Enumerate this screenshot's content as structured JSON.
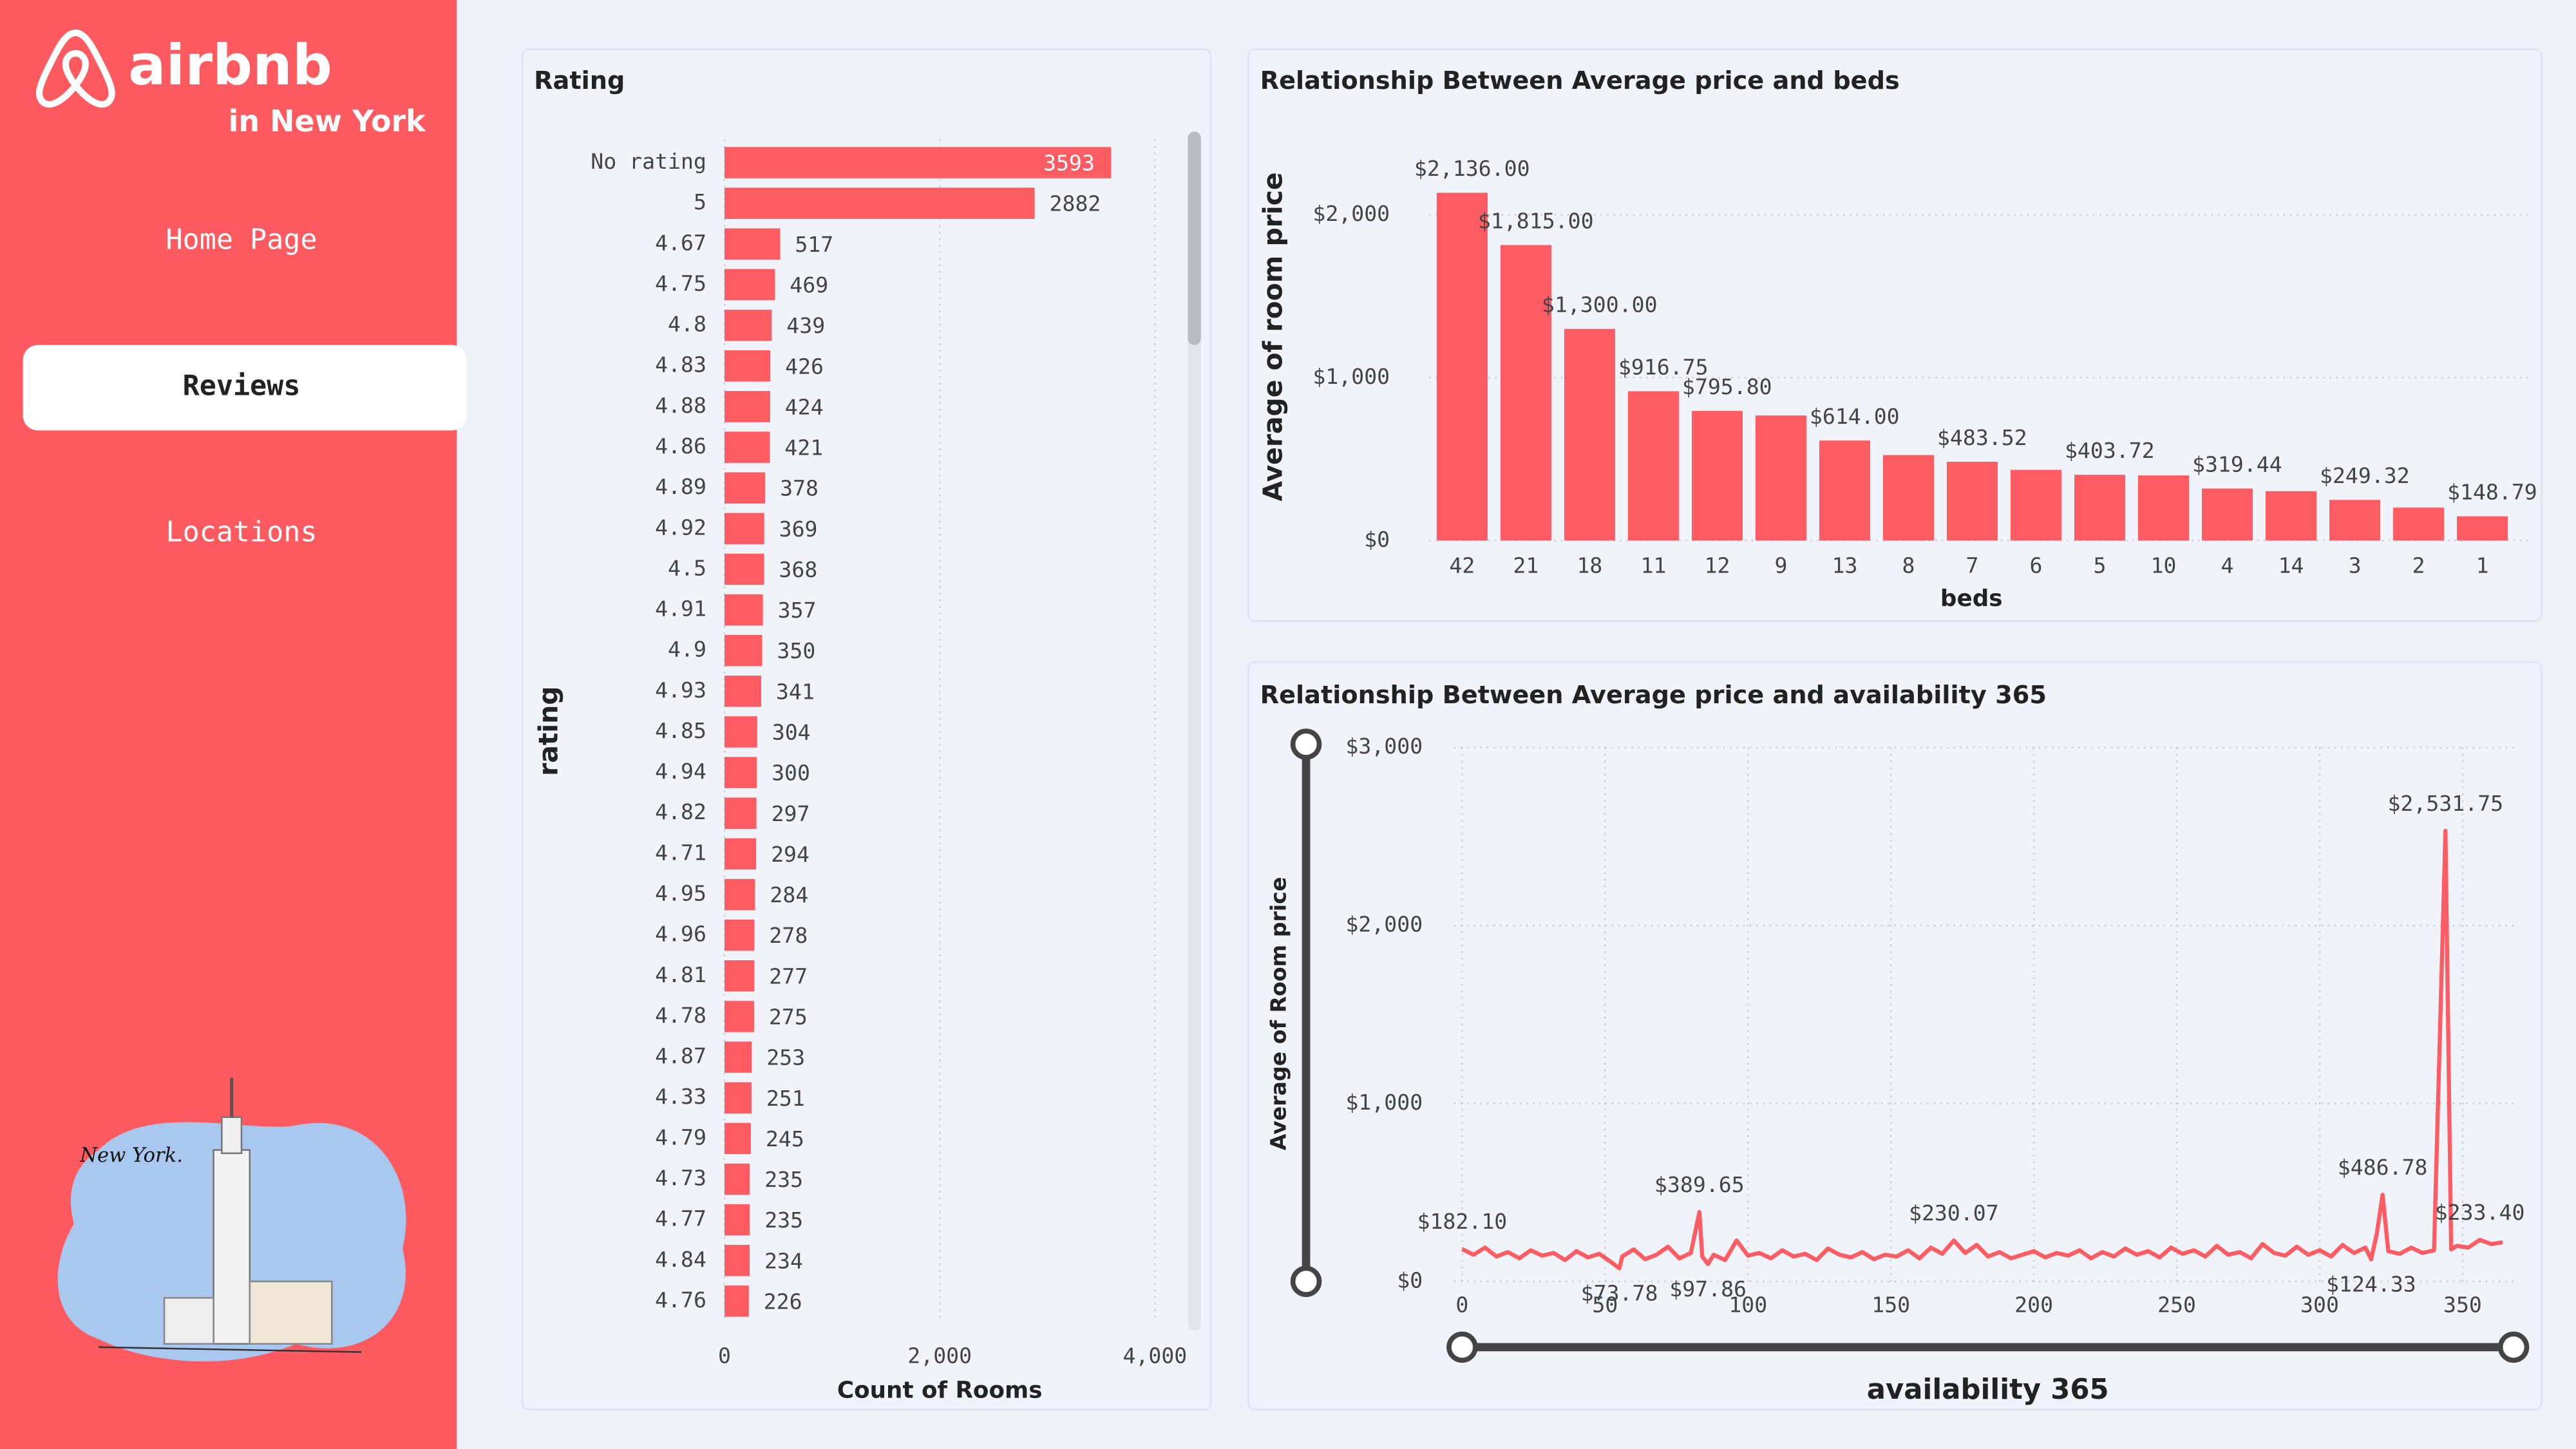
{
  "sidebar": {
    "brand": "airbnb",
    "subtitle": "in New York",
    "nav": [
      "Home Page",
      "Reviews",
      "Locations"
    ],
    "illustration_caption": "New York."
  },
  "chart_data": [
    {
      "type": "hbar",
      "title": "Rating",
      "x_label": "Count of Rooms",
      "y_label": "rating",
      "color": "#fd5c63",
      "grid": true,
      "categories": [
        "No rating",
        "5",
        "4.67",
        "4.75",
        "4.8",
        "4.83",
        "4.88",
        "4.86",
        "4.89",
        "4.92",
        "4.5",
        "4.91",
        "4.9",
        "4.93",
        "4.85",
        "4.94",
        "4.82",
        "4.71",
        "4.95",
        "4.96",
        "4.81",
        "4.78",
        "4.87",
        "4.33",
        "4.79",
        "4.73",
        "4.77",
        "4.84",
        "4.76"
      ],
      "values": [
        3593,
        2882,
        517,
        469,
        439,
        426,
        424,
        421,
        378,
        369,
        368,
        357,
        350,
        341,
        304,
        300,
        297,
        294,
        284,
        278,
        277,
        275,
        253,
        251,
        245,
        235,
        235,
        234,
        226
      ],
      "xlim": [
        0,
        4000
      ],
      "xticks": [
        0,
        {
          "value": 2000,
          "label": "2,000"
        },
        {
          "value": 4000,
          "label": "4,000"
        }
      ]
    },
    {
      "type": "bar",
      "title": "Relationship Between Average price and beds",
      "x_label": "beds",
      "y_label": "Average of room price",
      "color": "#fd5c63",
      "grid": true,
      "categories": [
        "42",
        "21",
        "18",
        "11",
        "12",
        "9",
        "13",
        "8",
        "7",
        "6",
        "5",
        "10",
        "4",
        "14",
        "3",
        "2",
        "1"
      ],
      "values": [
        2136,
        1815,
        1300,
        916.75,
        795.8,
        768,
        614,
        525,
        483.52,
        434,
        403.72,
        400,
        319.44,
        303,
        249.32,
        202,
        148.79
      ],
      "value_labels": [
        "$2,136.00",
        "$1,815.00",
        "$1,300.00",
        "$916.75",
        "$795.80",
        null,
        "$614.00",
        null,
        "$483.52",
        null,
        "$403.72",
        null,
        "$319.44",
        null,
        "$249.32",
        null,
        "$148.79"
      ],
      "ylim": [
        0,
        2200
      ],
      "yticks": [
        {
          "value": 0,
          "label": "$0"
        },
        {
          "value": 1000,
          "label": "$1,000"
        },
        {
          "value": 2000,
          "label": "$2,000"
        }
      ]
    },
    {
      "type": "line",
      "title": "Relationship Between Average price and availability 365",
      "x_label": "availability 365",
      "y_label": "Average of Room price",
      "color": "#fd5c63",
      "grid": true,
      "x": [
        0,
        4,
        8,
        12,
        16,
        20,
        24,
        28,
        32,
        36,
        40,
        44,
        48,
        52,
        55,
        56,
        60,
        64,
        68,
        72,
        76,
        80,
        83,
        84,
        86,
        88,
        92,
        96,
        100,
        104,
        108,
        112,
        116,
        120,
        124,
        128,
        132,
        136,
        140,
        144,
        148,
        152,
        156,
        160,
        164,
        168,
        172,
        176,
        180,
        184,
        188,
        192,
        196,
        200,
        204,
        208,
        212,
        216,
        220,
        224,
        228,
        232,
        236,
        240,
        244,
        248,
        252,
        256,
        260,
        264,
        268,
        272,
        276,
        280,
        284,
        288,
        292,
        296,
        300,
        304,
        308,
        312,
        316,
        318,
        320,
        322,
        324,
        328,
        332,
        336,
        340,
        344,
        346,
        348,
        352,
        356,
        360,
        364
      ],
      "values": [
        182.1,
        150,
        190,
        140,
        165,
        130,
        175,
        145,
        160,
        120,
        170,
        135,
        155,
        110,
        73.78,
        140,
        180,
        125,
        150,
        195,
        130,
        160,
        389.65,
        140,
        97.86,
        150,
        120,
        230,
        145,
        160,
        130,
        175,
        140,
        155,
        120,
        185,
        150,
        135,
        165,
        125,
        150,
        140,
        175,
        130,
        190,
        155,
        230.07,
        160,
        205,
        140,
        165,
        130,
        150,
        170,
        135,
        160,
        145,
        175,
        130,
        165,
        140,
        185,
        150,
        170,
        135,
        190,
        155,
        175,
        140,
        200,
        150,
        165,
        130,
        210,
        160,
        145,
        195,
        150,
        175,
        140,
        205,
        160,
        190,
        124.33,
        270,
        486.78,
        170,
        155,
        190,
        160,
        175,
        2531.75,
        180,
        200,
        190,
        233.4,
        210,
        220
      ],
      "value_labels": [
        "$182.10",
        null,
        null,
        null,
        null,
        null,
        null,
        null,
        null,
        null,
        null,
        null,
        null,
        null,
        "$73.78",
        null,
        null,
        null,
        null,
        null,
        null,
        null,
        "$389.65",
        null,
        "$97.86",
        null,
        null,
        null,
        null,
        null,
        null,
        null,
        null,
        null,
        null,
        null,
        null,
        null,
        null,
        null,
        null,
        null,
        null,
        null,
        null,
        null,
        "$230.07",
        null,
        null,
        null,
        null,
        null,
        null,
        null,
        null,
        null,
        null,
        null,
        null,
        null,
        null,
        null,
        null,
        null,
        null,
        null,
        null,
        null,
        null,
        null,
        null,
        null,
        null,
        null,
        null,
        null,
        null,
        null,
        null,
        null,
        null,
        null,
        null,
        "$124.33",
        null,
        "$486.78",
        null,
        null,
        null,
        null,
        null,
        "$2,531.75",
        null,
        null,
        null,
        "$233.40",
        null,
        null
      ],
      "xlim": [
        0,
        368
      ],
      "xticks": [
        0,
        50,
        100,
        150,
        200,
        250,
        300,
        350
      ],
      "ylim": [
        0,
        3000
      ],
      "yticks": [
        {
          "value": 0,
          "label": "$0"
        },
        {
          "value": 1000,
          "label": "$1,000"
        },
        {
          "value": 2000,
          "label": "$2,000"
        },
        {
          "value": 3000,
          "label": "$3,000"
        }
      ]
    }
  ]
}
